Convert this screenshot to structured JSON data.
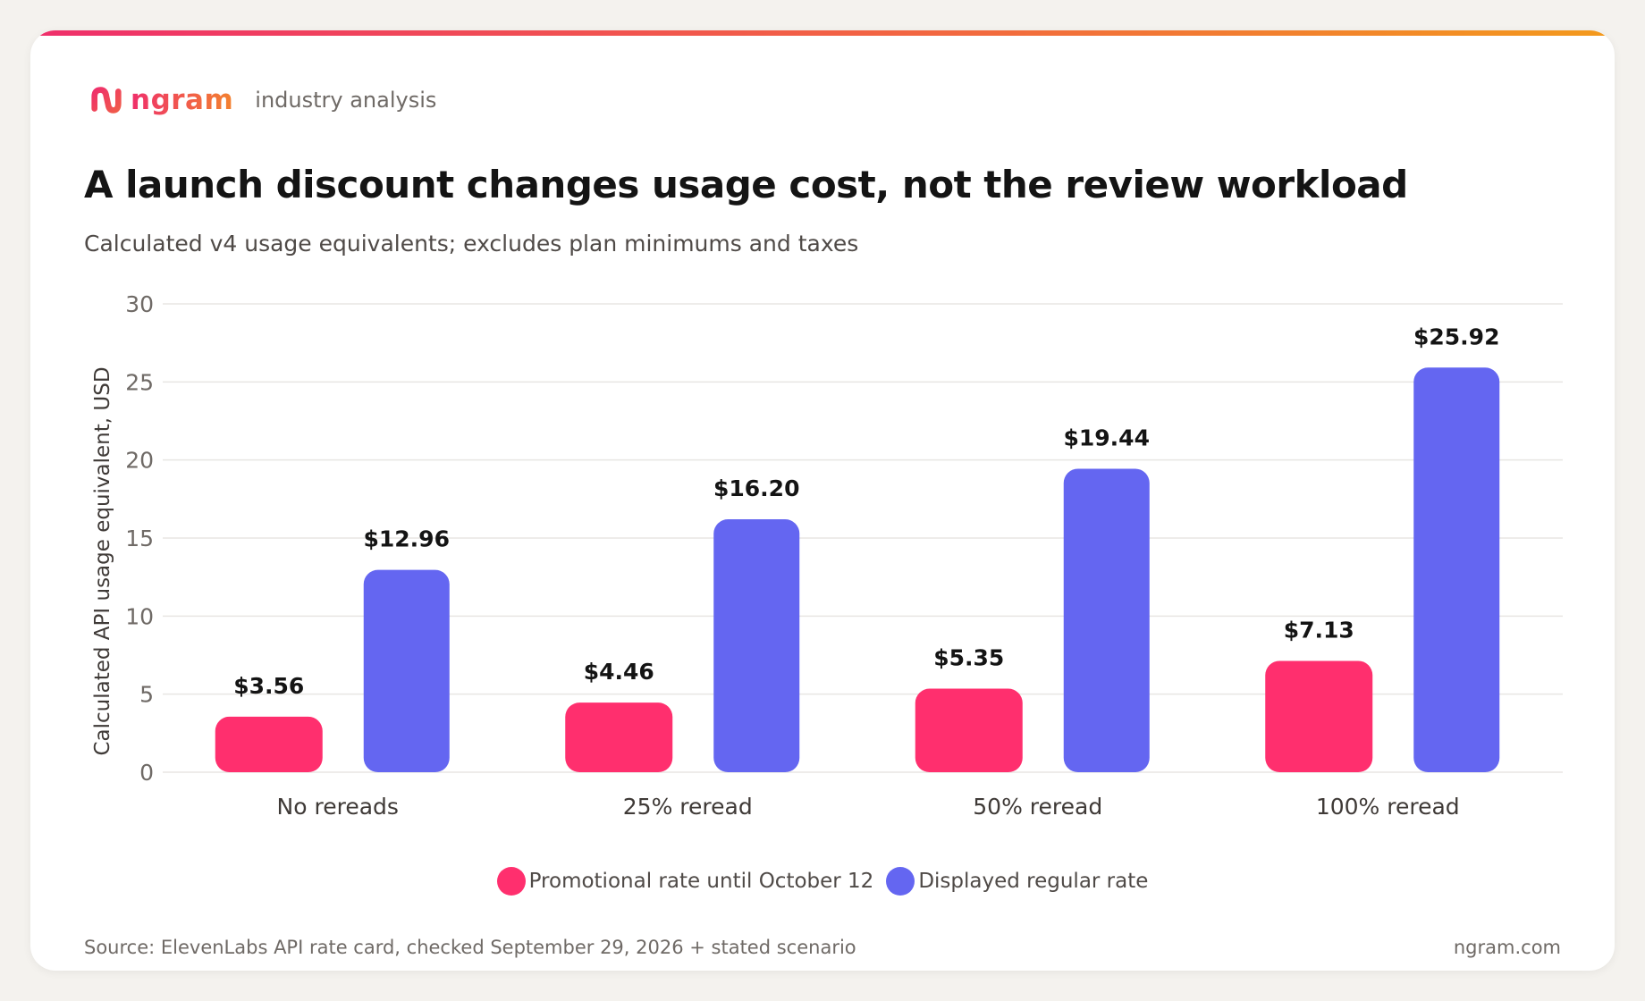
{
  "brand": {
    "name": "ngram",
    "tag": "industry analysis",
    "logo_icon": "ngram-logo-icon"
  },
  "title": "A launch discount changes usage cost, not the review workload",
  "subtitle": "Calculated v4 usage equivalents; excludes plan minimums and taxes",
  "colors": {
    "promo": "#ff2f6e",
    "regular": "#6466f1",
    "grid": "#e8e6e3",
    "tick": "#6f6a66",
    "label": "#141414",
    "category": "#3f3a37"
  },
  "chart_data": {
    "type": "bar",
    "categories": [
      "No rereads",
      "25% reread",
      "50% reread",
      "100% reread"
    ],
    "series": [
      {
        "name": "Promotional rate until October 12",
        "values": [
          3.56,
          4.46,
          5.35,
          7.13
        ],
        "labels": [
          "$3.56",
          "$4.46",
          "$5.35",
          "$7.13"
        ]
      },
      {
        "name": "Displayed regular rate",
        "values": [
          12.96,
          16.2,
          19.44,
          25.92
        ],
        "labels": [
          "$12.96",
          "$16.20",
          "$19.44",
          "$25.92"
        ]
      }
    ],
    "title": "A launch discount changes usage cost, not the review workload",
    "xlabel": "",
    "ylabel": "Calculated API usage equivalent, USD",
    "ylim": [
      0,
      30
    ],
    "yticks": [
      0,
      5,
      10,
      15,
      20,
      25,
      30
    ],
    "grid": true,
    "legend_position": "bottom"
  },
  "footer": {
    "source": "Source: ElevenLabs API rate card, checked September 29, 2026 + stated scenario",
    "site": "ngram.com"
  }
}
